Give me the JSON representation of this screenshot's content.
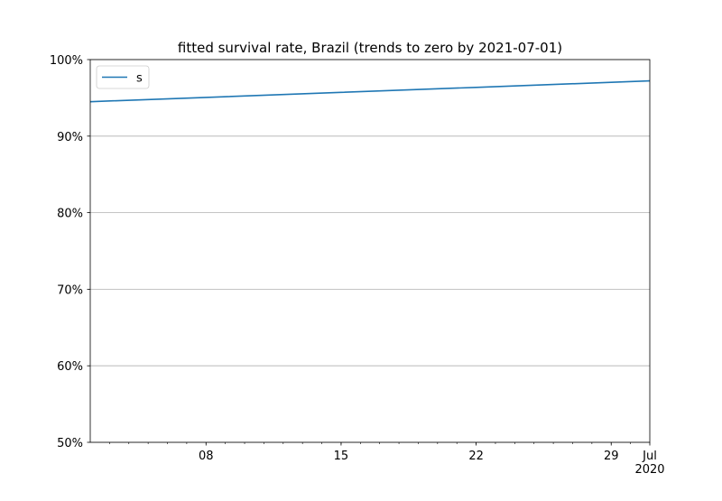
{
  "chart_data": {
    "type": "line",
    "title": "fitted survival rate, Brazil (trends to zero by 2021-07-01)",
    "xlabel": "",
    "ylabel": "",
    "x_ticks": [
      {
        "date": "2020-06-08",
        "label": "08"
      },
      {
        "date": "2020-06-15",
        "label": "15"
      },
      {
        "date": "2020-06-22",
        "label": "22"
      },
      {
        "date": "2020-06-29",
        "label": "29"
      },
      {
        "date": "2020-07-01",
        "label": "Jul\n2020"
      }
    ],
    "xlim": [
      "2020-06-02",
      "2020-07-01"
    ],
    "ylim": [
      0.5,
      1.0
    ],
    "y_ticks": [
      {
        "value": 0.5,
        "label": "50%"
      },
      {
        "value": 0.6,
        "label": "60%"
      },
      {
        "value": 0.7,
        "label": "70%"
      },
      {
        "value": 0.8,
        "label": "80%"
      },
      {
        "value": 0.9,
        "label": "90%"
      },
      {
        "value": 1.0,
        "label": "100%"
      }
    ],
    "grid": "y",
    "legend": "upper left",
    "series": [
      {
        "name": "s",
        "color": "#1f77b4",
        "points": [
          {
            "x": "2020-06-02",
            "y": 0.945
          },
          {
            "x": "2020-06-08",
            "y": 0.9506
          },
          {
            "x": "2020-06-15",
            "y": 0.9572
          },
          {
            "x": "2020-06-22",
            "y": 0.9637
          },
          {
            "x": "2020-06-29",
            "y": 0.9703
          },
          {
            "x": "2020-07-01",
            "y": 0.9722
          }
        ]
      }
    ]
  }
}
